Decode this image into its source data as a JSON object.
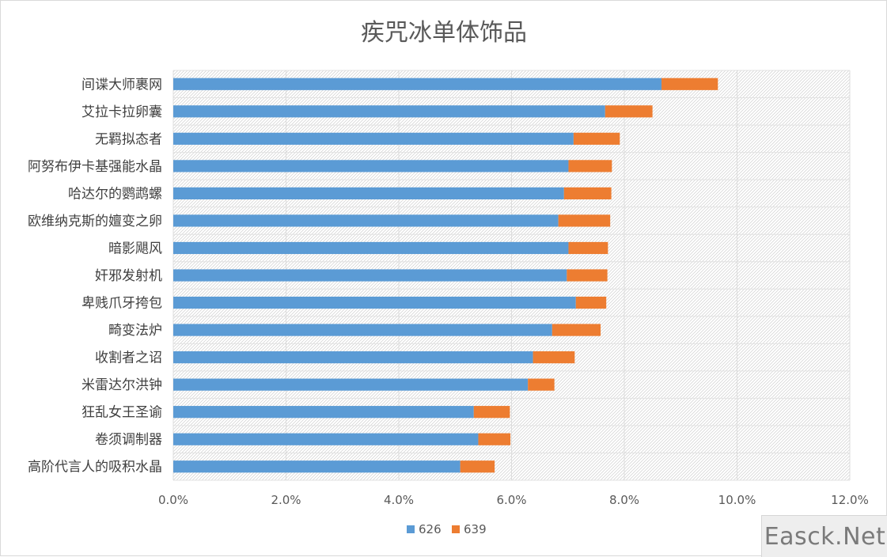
{
  "chart_data": {
    "type": "bar",
    "orientation": "horizontal",
    "stacked": true,
    "title": "疾咒冰单体饰品",
    "categories": [
      "间谍大师裹网",
      "艾拉卡拉卵囊",
      "无羁拟态者",
      "阿努布伊卡基强能水晶",
      "哈达尔的鹦鹉螺",
      "欧维纳克斯的嬗变之卵",
      "暗影飓风",
      "奸邪发射机",
      "卑贱爪牙挎包",
      "畸变法炉",
      "收割者之诏",
      "米雷达尔洪钟",
      "狂乱女王圣谕",
      "卷须调制器",
      "高阶代言人的吸积水晶"
    ],
    "series": [
      {
        "name": "626",
        "color": "#5b9bd5",
        "values": [
          8.66,
          7.66,
          7.1,
          7.01,
          6.93,
          6.83,
          7.01,
          6.98,
          7.14,
          6.72,
          6.38,
          6.29,
          5.33,
          5.41,
          5.09
        ]
      },
      {
        "name": "639",
        "color": "#ed7d31",
        "values": [
          1.0,
          0.84,
          0.82,
          0.77,
          0.84,
          0.92,
          0.7,
          0.72,
          0.54,
          0.86,
          0.74,
          0.47,
          0.64,
          0.57,
          0.61
        ]
      }
    ],
    "xlim": [
      0,
      12
    ],
    "xticks": [
      "0.0%",
      "2.0%",
      "4.0%",
      "6.0%",
      "8.0%",
      "10.0%",
      "12.0%"
    ],
    "grid": true,
    "legend_position": "bottom"
  },
  "watermark_text": "Easck.Net"
}
